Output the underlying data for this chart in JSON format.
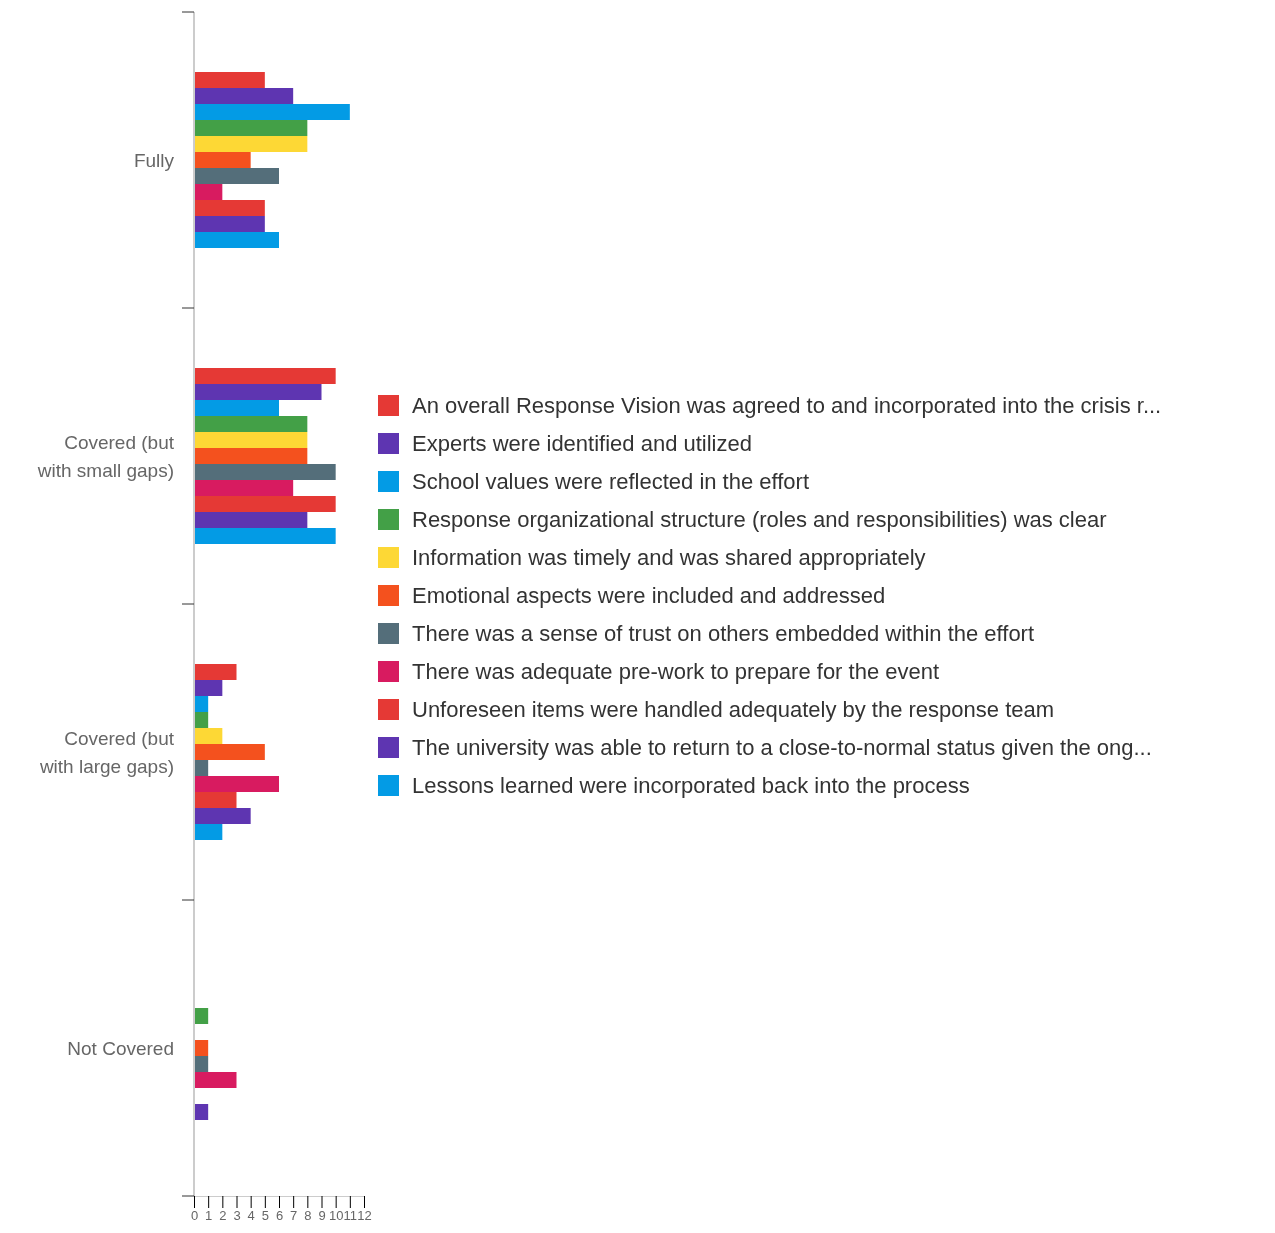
{
  "chart_data": {
    "type": "bar",
    "orientation": "horizontal",
    "categories": [
      "Fully",
      "Covered (but with small gaps)",
      "Covered (but with large gaps)",
      "Not Covered"
    ],
    "xlim": [
      0,
      12
    ],
    "xticks": [
      0,
      1,
      2,
      3,
      4,
      5,
      6,
      7,
      8,
      9,
      10,
      11,
      12
    ],
    "grid": false,
    "legend": "right",
    "series": [
      {
        "name": "An overall Response Vision was agreed to and incorporated into the crisis r...",
        "color": "#e53935",
        "values": [
          5,
          10,
          3,
          0
        ]
      },
      {
        "name": "Experts were identified and utilized",
        "color": "#5e35b1",
        "values": [
          7,
          9,
          2,
          0
        ]
      },
      {
        "name": "School values were reflected in the effort",
        "color": "#039be5",
        "values": [
          11,
          6,
          1,
          0
        ]
      },
      {
        "name": "Response organizational structure (roles and responsibilities) was clear",
        "color": "#43a047",
        "values": [
          8,
          8,
          1,
          1
        ]
      },
      {
        "name": "Information was timely and was shared appropriately",
        "color": "#fdd835",
        "values": [
          8,
          8,
          2,
          0
        ]
      },
      {
        "name": "Emotional aspects were included and addressed",
        "color": "#f4511e",
        "values": [
          4,
          8,
          5,
          1
        ]
      },
      {
        "name": "There was a sense of trust on others embedded within the effort",
        "color": "#546e7a",
        "values": [
          6,
          10,
          1,
          1
        ]
      },
      {
        "name": "There was adequate pre-work to prepare for the event",
        "color": "#d81b60",
        "values": [
          2,
          7,
          6,
          3
        ]
      },
      {
        "name": "Unforeseen items were handled adequately by the response team",
        "color": "#e53935",
        "values": [
          5,
          10,
          3,
          0
        ]
      },
      {
        "name": "The university was able to return to a close-to-normal status given the ong...",
        "color": "#5e35b1",
        "values": [
          5,
          8,
          4,
          1
        ]
      },
      {
        "name": "Lessons learned were incorporated back into the process",
        "color": "#039be5",
        "values": [
          6,
          10,
          2,
          0
        ]
      }
    ]
  }
}
